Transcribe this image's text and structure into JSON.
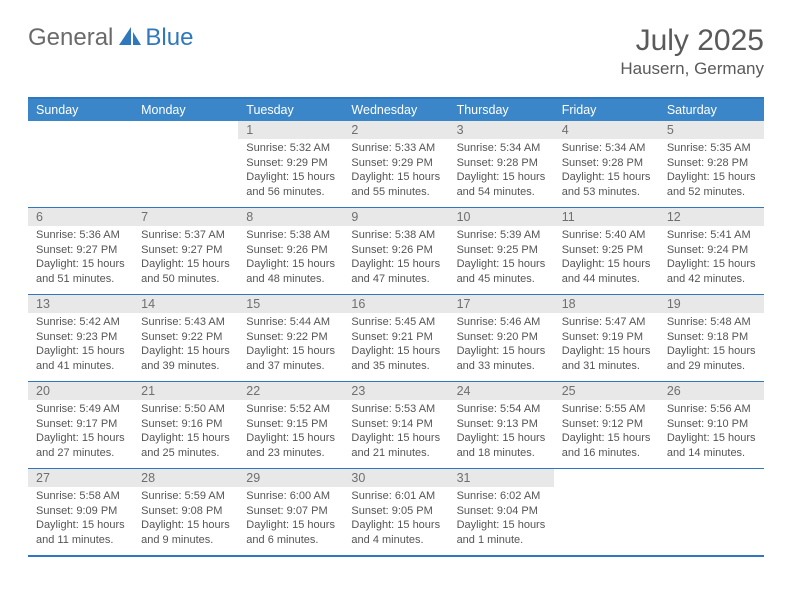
{
  "brand": {
    "text1": "General",
    "text2": "Blue"
  },
  "title": "July 2025",
  "location": "Hausern, Germany",
  "colors": {
    "header_bg": "#3a86c8",
    "header_border": "#2f78bd",
    "daynum_bg": "#e8e8e8",
    "text_muted": "#6f6f6f",
    "body_text": "#555555",
    "brand_gray": "#6a6a6a",
    "brand_blue": "#2f78bd"
  },
  "typography": {
    "title_fontsize": 30,
    "location_fontsize": 17,
    "dow_fontsize": 12.5,
    "daynum_fontsize": 12.5,
    "body_fontsize": 11
  },
  "layout": {
    "cols": 7,
    "rows": 5
  },
  "days_of_week": [
    "Sunday",
    "Monday",
    "Tuesday",
    "Wednesday",
    "Thursday",
    "Friday",
    "Saturday"
  ],
  "weeks": [
    [
      null,
      null,
      {
        "n": "1",
        "sr": "5:32 AM",
        "ss": "9:29 PM",
        "dl": "15 hours and 56 minutes."
      },
      {
        "n": "2",
        "sr": "5:33 AM",
        "ss": "9:29 PM",
        "dl": "15 hours and 55 minutes."
      },
      {
        "n": "3",
        "sr": "5:34 AM",
        "ss": "9:28 PM",
        "dl": "15 hours and 54 minutes."
      },
      {
        "n": "4",
        "sr": "5:34 AM",
        "ss": "9:28 PM",
        "dl": "15 hours and 53 minutes."
      },
      {
        "n": "5",
        "sr": "5:35 AM",
        "ss": "9:28 PM",
        "dl": "15 hours and 52 minutes."
      }
    ],
    [
      {
        "n": "6",
        "sr": "5:36 AM",
        "ss": "9:27 PM",
        "dl": "15 hours and 51 minutes."
      },
      {
        "n": "7",
        "sr": "5:37 AM",
        "ss": "9:27 PM",
        "dl": "15 hours and 50 minutes."
      },
      {
        "n": "8",
        "sr": "5:38 AM",
        "ss": "9:26 PM",
        "dl": "15 hours and 48 minutes."
      },
      {
        "n": "9",
        "sr": "5:38 AM",
        "ss": "9:26 PM",
        "dl": "15 hours and 47 minutes."
      },
      {
        "n": "10",
        "sr": "5:39 AM",
        "ss": "9:25 PM",
        "dl": "15 hours and 45 minutes."
      },
      {
        "n": "11",
        "sr": "5:40 AM",
        "ss": "9:25 PM",
        "dl": "15 hours and 44 minutes."
      },
      {
        "n": "12",
        "sr": "5:41 AM",
        "ss": "9:24 PM",
        "dl": "15 hours and 42 minutes."
      }
    ],
    [
      {
        "n": "13",
        "sr": "5:42 AM",
        "ss": "9:23 PM",
        "dl": "15 hours and 41 minutes."
      },
      {
        "n": "14",
        "sr": "5:43 AM",
        "ss": "9:22 PM",
        "dl": "15 hours and 39 minutes."
      },
      {
        "n": "15",
        "sr": "5:44 AM",
        "ss": "9:22 PM",
        "dl": "15 hours and 37 minutes."
      },
      {
        "n": "16",
        "sr": "5:45 AM",
        "ss": "9:21 PM",
        "dl": "15 hours and 35 minutes."
      },
      {
        "n": "17",
        "sr": "5:46 AM",
        "ss": "9:20 PM",
        "dl": "15 hours and 33 minutes."
      },
      {
        "n": "18",
        "sr": "5:47 AM",
        "ss": "9:19 PM",
        "dl": "15 hours and 31 minutes."
      },
      {
        "n": "19",
        "sr": "5:48 AM",
        "ss": "9:18 PM",
        "dl": "15 hours and 29 minutes."
      }
    ],
    [
      {
        "n": "20",
        "sr": "5:49 AM",
        "ss": "9:17 PM",
        "dl": "15 hours and 27 minutes."
      },
      {
        "n": "21",
        "sr": "5:50 AM",
        "ss": "9:16 PM",
        "dl": "15 hours and 25 minutes."
      },
      {
        "n": "22",
        "sr": "5:52 AM",
        "ss": "9:15 PM",
        "dl": "15 hours and 23 minutes."
      },
      {
        "n": "23",
        "sr": "5:53 AM",
        "ss": "9:14 PM",
        "dl": "15 hours and 21 minutes."
      },
      {
        "n": "24",
        "sr": "5:54 AM",
        "ss": "9:13 PM",
        "dl": "15 hours and 18 minutes."
      },
      {
        "n": "25",
        "sr": "5:55 AM",
        "ss": "9:12 PM",
        "dl": "15 hours and 16 minutes."
      },
      {
        "n": "26",
        "sr": "5:56 AM",
        "ss": "9:10 PM",
        "dl": "15 hours and 14 minutes."
      }
    ],
    [
      {
        "n": "27",
        "sr": "5:58 AM",
        "ss": "9:09 PM",
        "dl": "15 hours and 11 minutes."
      },
      {
        "n": "28",
        "sr": "5:59 AM",
        "ss": "9:08 PM",
        "dl": "15 hours and 9 minutes."
      },
      {
        "n": "29",
        "sr": "6:00 AM",
        "ss": "9:07 PM",
        "dl": "15 hours and 6 minutes."
      },
      {
        "n": "30",
        "sr": "6:01 AM",
        "ss": "9:05 PM",
        "dl": "15 hours and 4 minutes."
      },
      {
        "n": "31",
        "sr": "6:02 AM",
        "ss": "9:04 PM",
        "dl": "15 hours and 1 minute."
      },
      null,
      null
    ]
  ],
  "labels": {
    "sunrise": "Sunrise:",
    "sunset": "Sunset:",
    "daylight": "Daylight:"
  }
}
